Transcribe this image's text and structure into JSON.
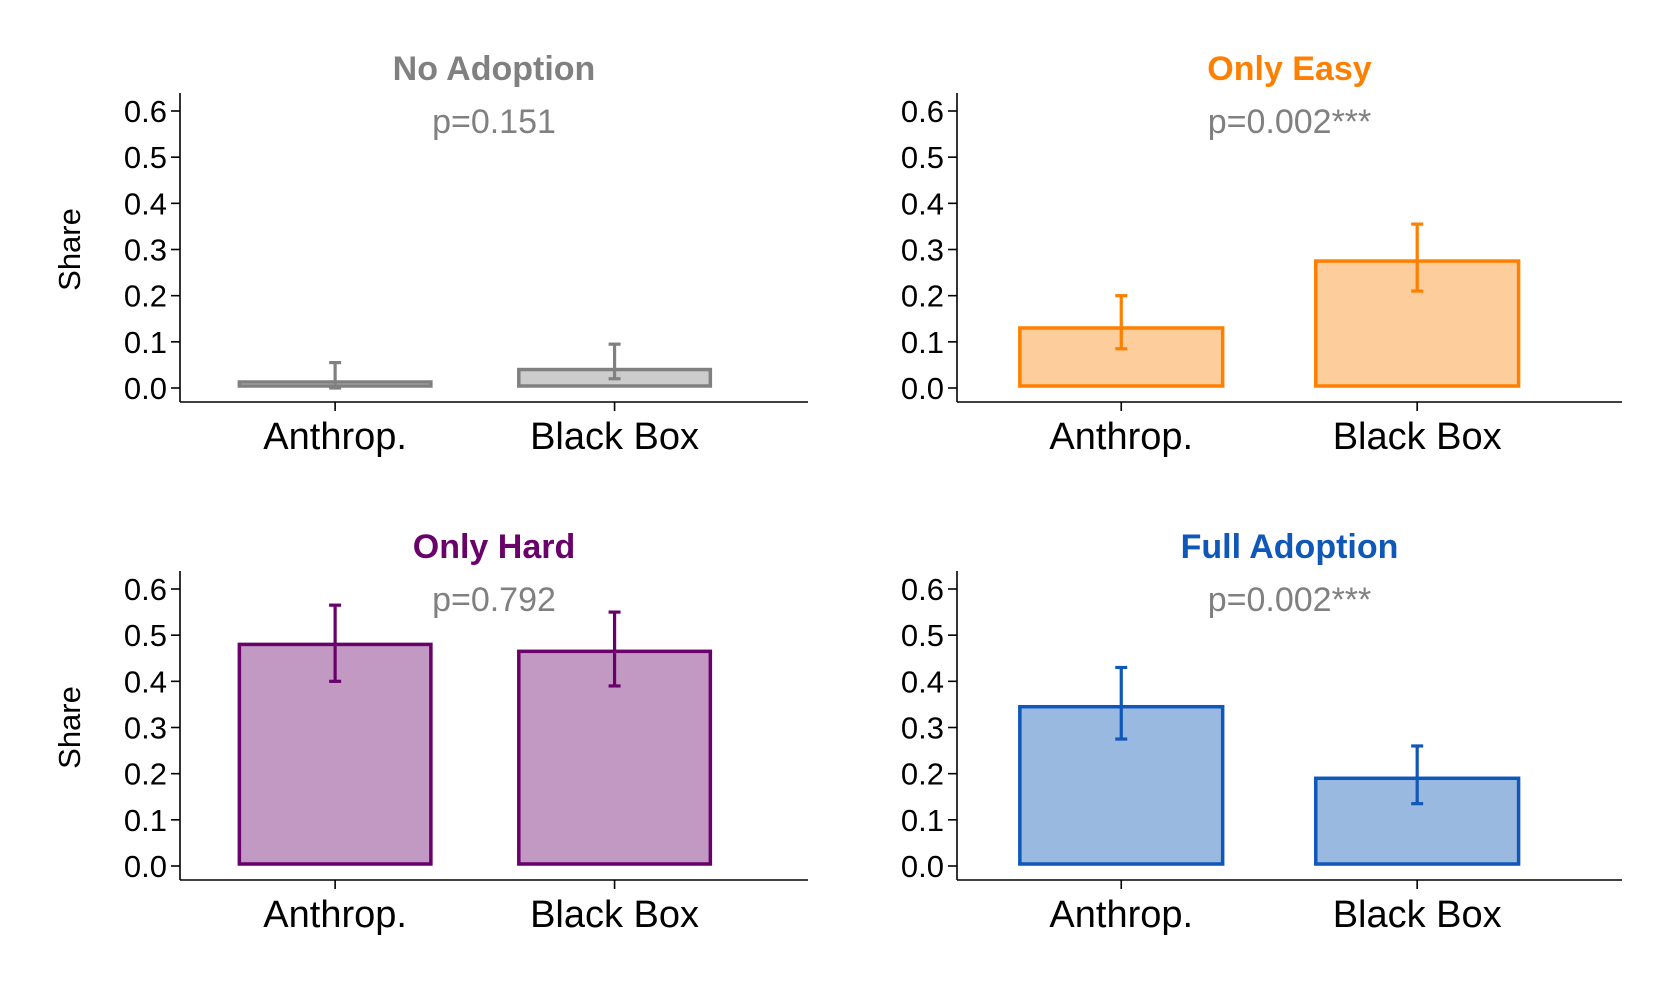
{
  "chart_data": [
    {
      "type": "bar",
      "title": "No Adoption",
      "annotation": "p=0.151",
      "title_color": "#808080",
      "fill_color": "#cccccc",
      "stroke_color": "#808080",
      "ylabel": "Share",
      "ylim": [
        0,
        0.6
      ],
      "yticks": [
        "0.0",
        "0.1",
        "0.2",
        "0.3",
        "0.4",
        "0.5",
        "0.6"
      ],
      "categories": [
        "Anthrop.",
        "Black Box"
      ],
      "values": [
        0.01,
        0.04
      ],
      "error_low": [
        0.0,
        0.02
      ],
      "error_high": [
        0.055,
        0.095
      ]
    },
    {
      "type": "bar",
      "title": "Only Easy",
      "annotation": "p=0.002***",
      "title_color": "#ff7f00",
      "fill_color": "#fdcd9c",
      "stroke_color": "#ff7f00",
      "ylabel": "",
      "ylim": [
        0,
        0.6
      ],
      "yticks": [
        "0.0",
        "0.1",
        "0.2",
        "0.3",
        "0.4",
        "0.5",
        "0.6"
      ],
      "categories": [
        "Anthrop.",
        "Black Box"
      ],
      "values": [
        0.13,
        0.275
      ],
      "error_low": [
        0.085,
        0.21
      ],
      "error_high": [
        0.2,
        0.355
      ]
    },
    {
      "type": "bar",
      "title": "Only Hard",
      "annotation": "p=0.792",
      "title_color": "#6a006a",
      "fill_color": "#c199c3",
      "stroke_color": "#6a006a",
      "ylabel": "Share",
      "ylim": [
        0,
        0.6
      ],
      "yticks": [
        "0.0",
        "0.1",
        "0.2",
        "0.3",
        "0.4",
        "0.5",
        "0.6"
      ],
      "categories": [
        "Anthrop.",
        "Black Box"
      ],
      "values": [
        0.48,
        0.465
      ],
      "error_low": [
        0.4,
        0.39
      ],
      "error_high": [
        0.565,
        0.55
      ]
    },
    {
      "type": "bar",
      "title": "Full Adoption",
      "annotation": "p=0.002***",
      "title_color": "#0f57b8",
      "fill_color": "#99b9e1",
      "stroke_color": "#0f57b8",
      "ylabel": "",
      "ylim": [
        0,
        0.6
      ],
      "yticks": [
        "0.0",
        "0.1",
        "0.2",
        "0.3",
        "0.4",
        "0.5",
        "0.6"
      ],
      "categories": [
        "Anthrop.",
        "Black Box"
      ],
      "values": [
        0.345,
        0.19
      ],
      "error_low": [
        0.275,
        0.135
      ],
      "error_high": [
        0.43,
        0.26
      ]
    }
  ]
}
